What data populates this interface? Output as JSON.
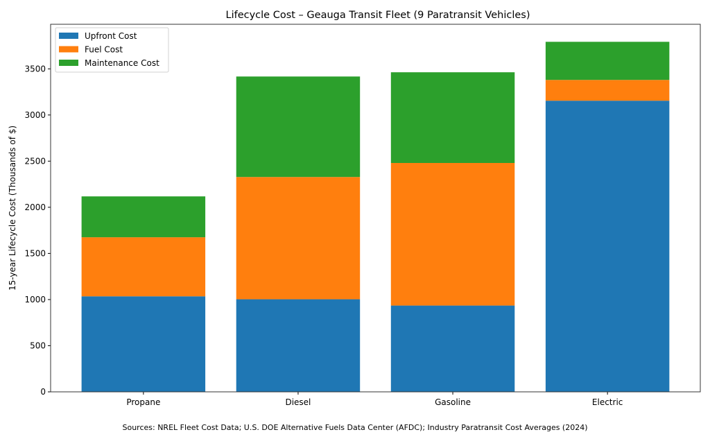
{
  "chart_data": {
    "type": "bar",
    "stacked": true,
    "title": "Lifecycle Cost – Geauga Transit Fleet (9 Paratransit Vehicles)",
    "xlabel": "",
    "ylabel": "15-year Lifecycle Cost (Thousands of $)",
    "categories": [
      "Propane",
      "Diesel",
      "Gasoline",
      "Electric"
    ],
    "series": [
      {
        "name": "Upfront Cost",
        "color": "#1f77b4",
        "values": [
          1035,
          1003,
          935,
          3155
        ]
      },
      {
        "name": "Fuel Cost",
        "color": "#ff7f0e",
        "values": [
          640,
          1325,
          1545,
          225
        ]
      },
      {
        "name": "Maintenance Cost",
        "color": "#2ca02c",
        "values": [
          443,
          1089,
          983,
          413
        ]
      }
    ],
    "ylim": [
      0,
      3983
    ],
    "yticks": [
      0,
      500,
      1000,
      1500,
      2000,
      2500,
      3000,
      3500
    ],
    "grid": false,
    "legend_position": "top-left",
    "footnote": "Sources: NREL Fleet Cost Data; U.S. DOE Alternative Fuels Data Center (AFDC); Industry Paratransit Cost Averages (2024)"
  }
}
